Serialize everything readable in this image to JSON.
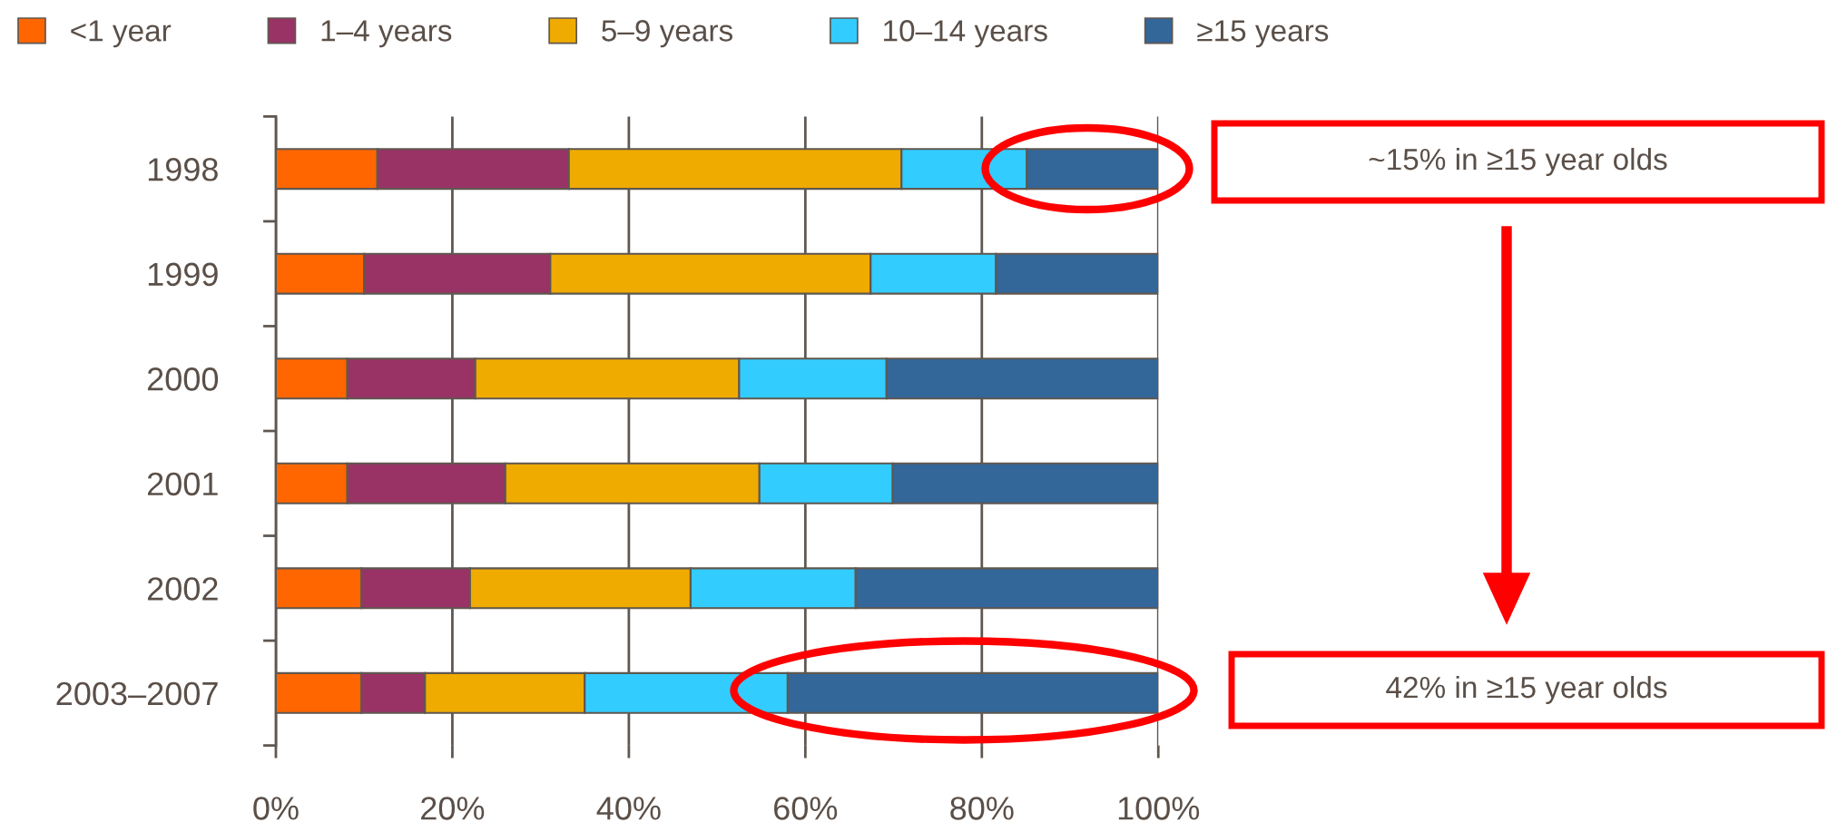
{
  "chart_data": {
    "type": "bar",
    "orientation": "horizontal",
    "stacked": true,
    "categories": [
      "1998",
      "1999",
      "2000",
      "2001",
      "2002",
      "2003–2007"
    ],
    "series": [
      {
        "name": "<1 year",
        "color": "#ff6600",
        "values": [
          11.5,
          10.0,
          8.1,
          8.1,
          9.7,
          9.7
        ]
      },
      {
        "name": "1–4 years",
        "color": "#993366",
        "values": [
          21.7,
          21.1,
          14.5,
          17.9,
          12.3,
          7.2
        ]
      },
      {
        "name": "5–9 years",
        "color": "#f0ab00",
        "values": [
          37.7,
          36.3,
          29.9,
          28.8,
          25.0,
          18.1
        ]
      },
      {
        "name": "10–14 years",
        "color": "#33ccff",
        "values": [
          14.2,
          14.2,
          16.7,
          15.1,
          18.7,
          23.0
        ]
      },
      {
        "name": "≥15 years",
        "color": "#336699",
        "values": [
          14.9,
          18.4,
          30.8,
          30.1,
          34.3,
          42.0
        ]
      }
    ],
    "xlim": [
      0,
      100
    ],
    "xticks": [
      {
        "value": 0,
        "label": "0%"
      },
      {
        "value": 20,
        "label": "20%"
      },
      {
        "value": 40,
        "label": "40%"
      },
      {
        "value": 60,
        "label": "60%"
      },
      {
        "value": 80,
        "label": "80%"
      },
      {
        "value": 100,
        "label": "100%"
      }
    ],
    "grid": "x",
    "legend": "top",
    "annotations": [
      "~15% in ≥15 year olds",
      "42% in ≥15 year olds"
    ]
  }
}
